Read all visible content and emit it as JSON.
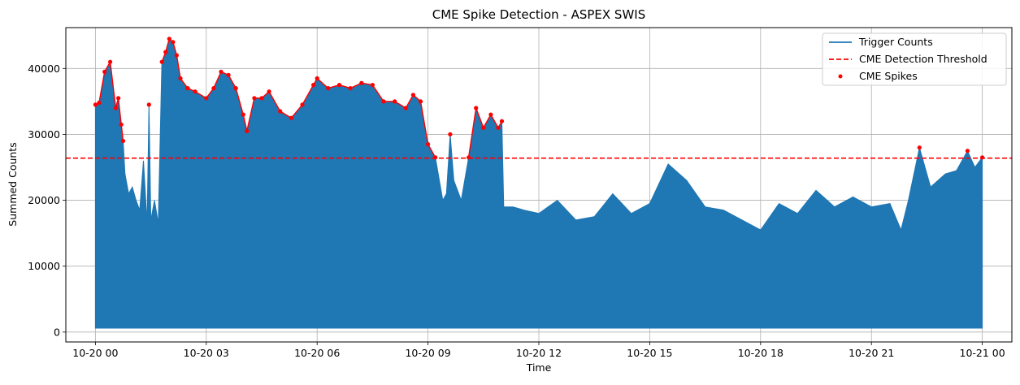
{
  "chart_data": {
    "type": "line",
    "title": "CME Spike Detection - ASPEX SWIS",
    "xlabel": "Time",
    "ylabel": "Summed Counts",
    "x_unit": "hours",
    "xlim": [
      -0.8,
      24.8
    ],
    "ylim": [
      -1500,
      46200
    ],
    "grid": true,
    "legend_position": "top-right",
    "x_ticks": [
      {
        "value": 0,
        "label": "10-20 00"
      },
      {
        "value": 3,
        "label": "10-20 03"
      },
      {
        "value": 6,
        "label": "10-20 06"
      },
      {
        "value": 9,
        "label": "10-20 09"
      },
      {
        "value": 12,
        "label": "10-20 12"
      },
      {
        "value": 15,
        "label": "10-20 15"
      },
      {
        "value": 18,
        "label": "10-20 18"
      },
      {
        "value": 21,
        "label": "10-20 21"
      },
      {
        "value": 24,
        "label": "10-21 00"
      }
    ],
    "y_ticks": [
      0,
      10000,
      20000,
      30000,
      40000
    ],
    "series": [
      {
        "name": "Trigger Counts",
        "color": "#1f77b4",
        "style": "solid",
        "baseline": 600,
        "x": [
          0,
          0.1,
          0.25,
          0.4,
          0.55,
          0.62,
          0.7,
          0.75,
          0.8,
          0.9,
          1.0,
          1.1,
          1.2,
          1.3,
          1.4,
          1.45,
          1.5,
          1.6,
          1.7,
          1.8,
          1.9,
          2.0,
          2.1,
          2.2,
          2.3,
          2.5,
          2.7,
          3.0,
          3.2,
          3.4,
          3.6,
          3.8,
          4.0,
          4.1,
          4.3,
          4.5,
          4.7,
          5.0,
          5.3,
          5.6,
          5.9,
          6.0,
          6.3,
          6.6,
          6.9,
          7.2,
          7.5,
          7.8,
          8.1,
          8.4,
          8.6,
          8.8,
          9.0,
          9.2,
          9.4,
          9.5,
          9.6,
          9.7,
          9.9,
          10.1,
          10.3,
          10.5,
          10.7,
          10.9,
          11.0,
          11.05,
          11.3,
          11.6,
          12.0,
          12.5,
          13.0,
          13.5,
          14.0,
          14.5,
          15.0,
          15.5,
          16.0,
          16.5,
          17.0,
          17.5,
          18.0,
          18.5,
          19.0,
          19.5,
          20.0,
          20.5,
          21.0,
          21.5,
          21.8,
          22.0,
          22.3,
          22.6,
          23.0,
          23.3,
          23.6,
          23.8,
          24.0
        ],
        "values": [
          34500,
          34800,
          39500,
          41000,
          34000,
          35500,
          31500,
          29000,
          24000,
          21000,
          22000,
          20000,
          18500,
          26000,
          16500,
          34500,
          17000,
          20000,
          16500,
          41000,
          42500,
          44500,
          44000,
          42000,
          38500,
          37000,
          36500,
          35500,
          37000,
          39500,
          39000,
          37000,
          33000,
          30500,
          35500,
          35500,
          36500,
          33500,
          32500,
          34500,
          37500,
          38500,
          37000,
          37500,
          37000,
          37800,
          37500,
          35000,
          35000,
          34000,
          36000,
          35000,
          28500,
          26500,
          20000,
          21000,
          30000,
          23000,
          20000,
          26500,
          34000,
          31000,
          33000,
          31000,
          32000,
          19000,
          19000,
          18500,
          18000,
          20000,
          17000,
          17500,
          21000,
          18000,
          19500,
          25500,
          23000,
          19000,
          18500,
          17000,
          15500,
          19500,
          18000,
          21500,
          19000,
          20500,
          19000,
          19500,
          15500,
          20000,
          28000,
          22000,
          24000,
          24500,
          27500,
          25000,
          26500
        ]
      },
      {
        "name": "CME Detection Threshold",
        "color": "#ff0000",
        "style": "dashed",
        "value": 26400
      },
      {
        "name": "CME Spikes",
        "color": "#ff0000",
        "style": "points"
      }
    ]
  }
}
